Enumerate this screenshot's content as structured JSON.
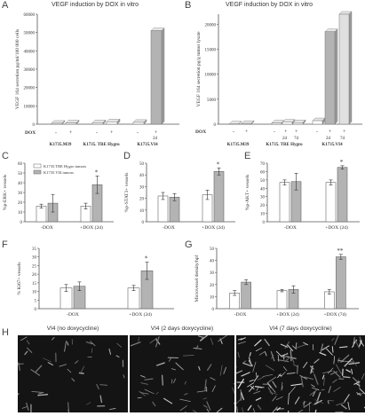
{
  "panels": {
    "A": {
      "label": "A",
      "title": "VEGF induction by DOX in vitro",
      "ylabel": "VEGF 164 secretion pg/ml/100 000 cells",
      "dox_row_label": "DOX",
      "dox_marks": [
        "-",
        "+",
        "-",
        "+",
        "-",
        "+"
      ],
      "dox_extra": "2d",
      "groups": [
        "K1735.M39",
        "K1735. TRE Hygro",
        "K1735.VI4"
      ]
    },
    "B": {
      "label": "B",
      "title": "VEGF induction by DOX in vitro",
      "ylabel": "VEGF 164 secretion pg/g tumor lysate",
      "dox_row_label": "DOX",
      "dox_marks": [
        "-",
        "+",
        "-",
        "+",
        "+",
        "-",
        "+",
        "+"
      ],
      "dox_extra": [
        "2d",
        "7d",
        "2d",
        "7d"
      ],
      "groups": [
        "K1735.M39",
        "K1735. TRE Hygro",
        "K1735.VI4"
      ]
    },
    "C": {
      "label": "C",
      "ylabel": "%p-ERK+ vessels",
      "legend": [
        "K1735.TRE Hygro tumors",
        "K1735.VI4 tumors"
      ]
    },
    "D": {
      "label": "D",
      "ylabel": "%p-STAT3+ vessels"
    },
    "E": {
      "label": "E",
      "ylabel": "%p-AKT+ vessels"
    },
    "F": {
      "label": "F",
      "ylabel": "% Ki67+ vessels"
    },
    "G": {
      "label": "G",
      "ylabel": "Microvessel density/hpf"
    },
    "H": {
      "label": "H",
      "images": [
        "VI4 (no doxycycline)",
        "VI4 (2 days doxycycline)",
        "VI4  (7 days doxycycline)"
      ]
    }
  },
  "colors": {
    "white_bar": "#ffffff",
    "gray_bar": "#b3b3b3",
    "axis": "#555555"
  },
  "chart_data": [
    {
      "panel": "A",
      "type": "bar",
      "ylim": [
        0,
        60000
      ],
      "yticks": [
        0,
        10000,
        20000,
        30000,
        40000,
        50000,
        60000
      ],
      "categories": [
        "K1735.M39 -DOX",
        "K1735.M39 +DOX",
        "K1735.TRE Hygro -DOX",
        "K1735.TRE Hygro +DOX",
        "K1735.VI4 -DOX",
        "K1735.VI4 +DOX 2d"
      ],
      "values": [
        500,
        700,
        800,
        1300,
        1000,
        51000
      ]
    },
    {
      "panel": "B",
      "type": "bar",
      "ylim": [
        0,
        22000
      ],
      "yticks": [
        0,
        5000,
        10000,
        15000,
        20000
      ],
      "categories": [
        "K1735.M39 -DOX",
        "K1735.M39 +DOX",
        "K1735.TRE Hygro -DOX",
        "K1735.TRE Hygro +DOX 2d",
        "K1735.TRE Hygro +DOX 7d",
        "K1735.VI4 -DOX",
        "K1735.VI4 +DOX 2d",
        "K1735.VI4 +DOX 7d"
      ],
      "values": [
        50,
        150,
        250,
        400,
        300,
        700,
        18500,
        22000
      ]
    },
    {
      "panel": "C",
      "type": "bar",
      "ylim": [
        0,
        60
      ],
      "yticks": [
        0,
        10,
        20,
        30,
        40,
        50,
        60
      ],
      "categories": [
        "-DOX",
        "+DOX (2d)"
      ],
      "series": [
        {
          "name": "K1735.TRE Hygro tumors",
          "values": [
            16,
            16
          ],
          "errors": [
            2,
            3
          ]
        },
        {
          "name": "K1735.VI4 tumors",
          "values": [
            19,
            38
          ],
          "errors": [
            9,
            9
          ]
        }
      ],
      "annotations": [
        {
          "category": "+DOX (2d)",
          "text": "*"
        }
      ]
    },
    {
      "panel": "D",
      "type": "bar",
      "ylim": [
        0,
        50
      ],
      "yticks": [
        0,
        10,
        20,
        30,
        40,
        50
      ],
      "categories": [
        "-DOX",
        "+DOX (2d)"
      ],
      "series": [
        {
          "values": [
            22,
            23
          ],
          "errors": [
            3,
            4
          ]
        },
        {
          "values": [
            21,
            43
          ],
          "errors": [
            3,
            3
          ]
        }
      ],
      "annotations": [
        {
          "category": "+DOX (2d)",
          "text": "*"
        }
      ]
    },
    {
      "panel": "E",
      "type": "bar",
      "ylim": [
        0,
        70
      ],
      "yticks": [
        0,
        10,
        20,
        30,
        40,
        50,
        60,
        70
      ],
      "categories": [
        "-DOX",
        "+DOX (2d)"
      ],
      "series": [
        {
          "values": [
            47,
            47
          ],
          "errors": [
            3,
            3
          ]
        },
        {
          "values": [
            48,
            65
          ],
          "errors": [
            10,
            2
          ]
        }
      ],
      "annotations": [
        {
          "category": "+DOX (2d)",
          "text": "*"
        }
      ]
    },
    {
      "panel": "F",
      "type": "bar",
      "ylim": [
        0,
        35
      ],
      "yticks": [
        0,
        5,
        10,
        15,
        20,
        25,
        30,
        35
      ],
      "categories": [
        "-DOX",
        "+DOX (2d)"
      ],
      "series": [
        {
          "values": [
            12,
            12
          ],
          "errors": [
            2,
            1.5
          ]
        },
        {
          "values": [
            13,
            22
          ],
          "errors": [
            2.5,
            5
          ]
        }
      ],
      "annotations": [
        {
          "category": "+DOX (2d)",
          "text": "*"
        }
      ]
    },
    {
      "panel": "G",
      "type": "bar",
      "ylim": [
        0,
        50
      ],
      "yticks": [
        0,
        10,
        20,
        30,
        40,
        50
      ],
      "categories": [
        "-DOX",
        "+DOX (2d)",
        "+DOX (7d)"
      ],
      "series": [
        {
          "values": [
            13,
            15,
            14
          ],
          "errors": [
            2,
            1,
            2
          ]
        },
        {
          "values": [
            22,
            16,
            43
          ],
          "errors": [
            2,
            3,
            2
          ]
        }
      ],
      "annotations": [
        {
          "category": "+DOX (7d)",
          "text": "**"
        }
      ]
    }
  ]
}
